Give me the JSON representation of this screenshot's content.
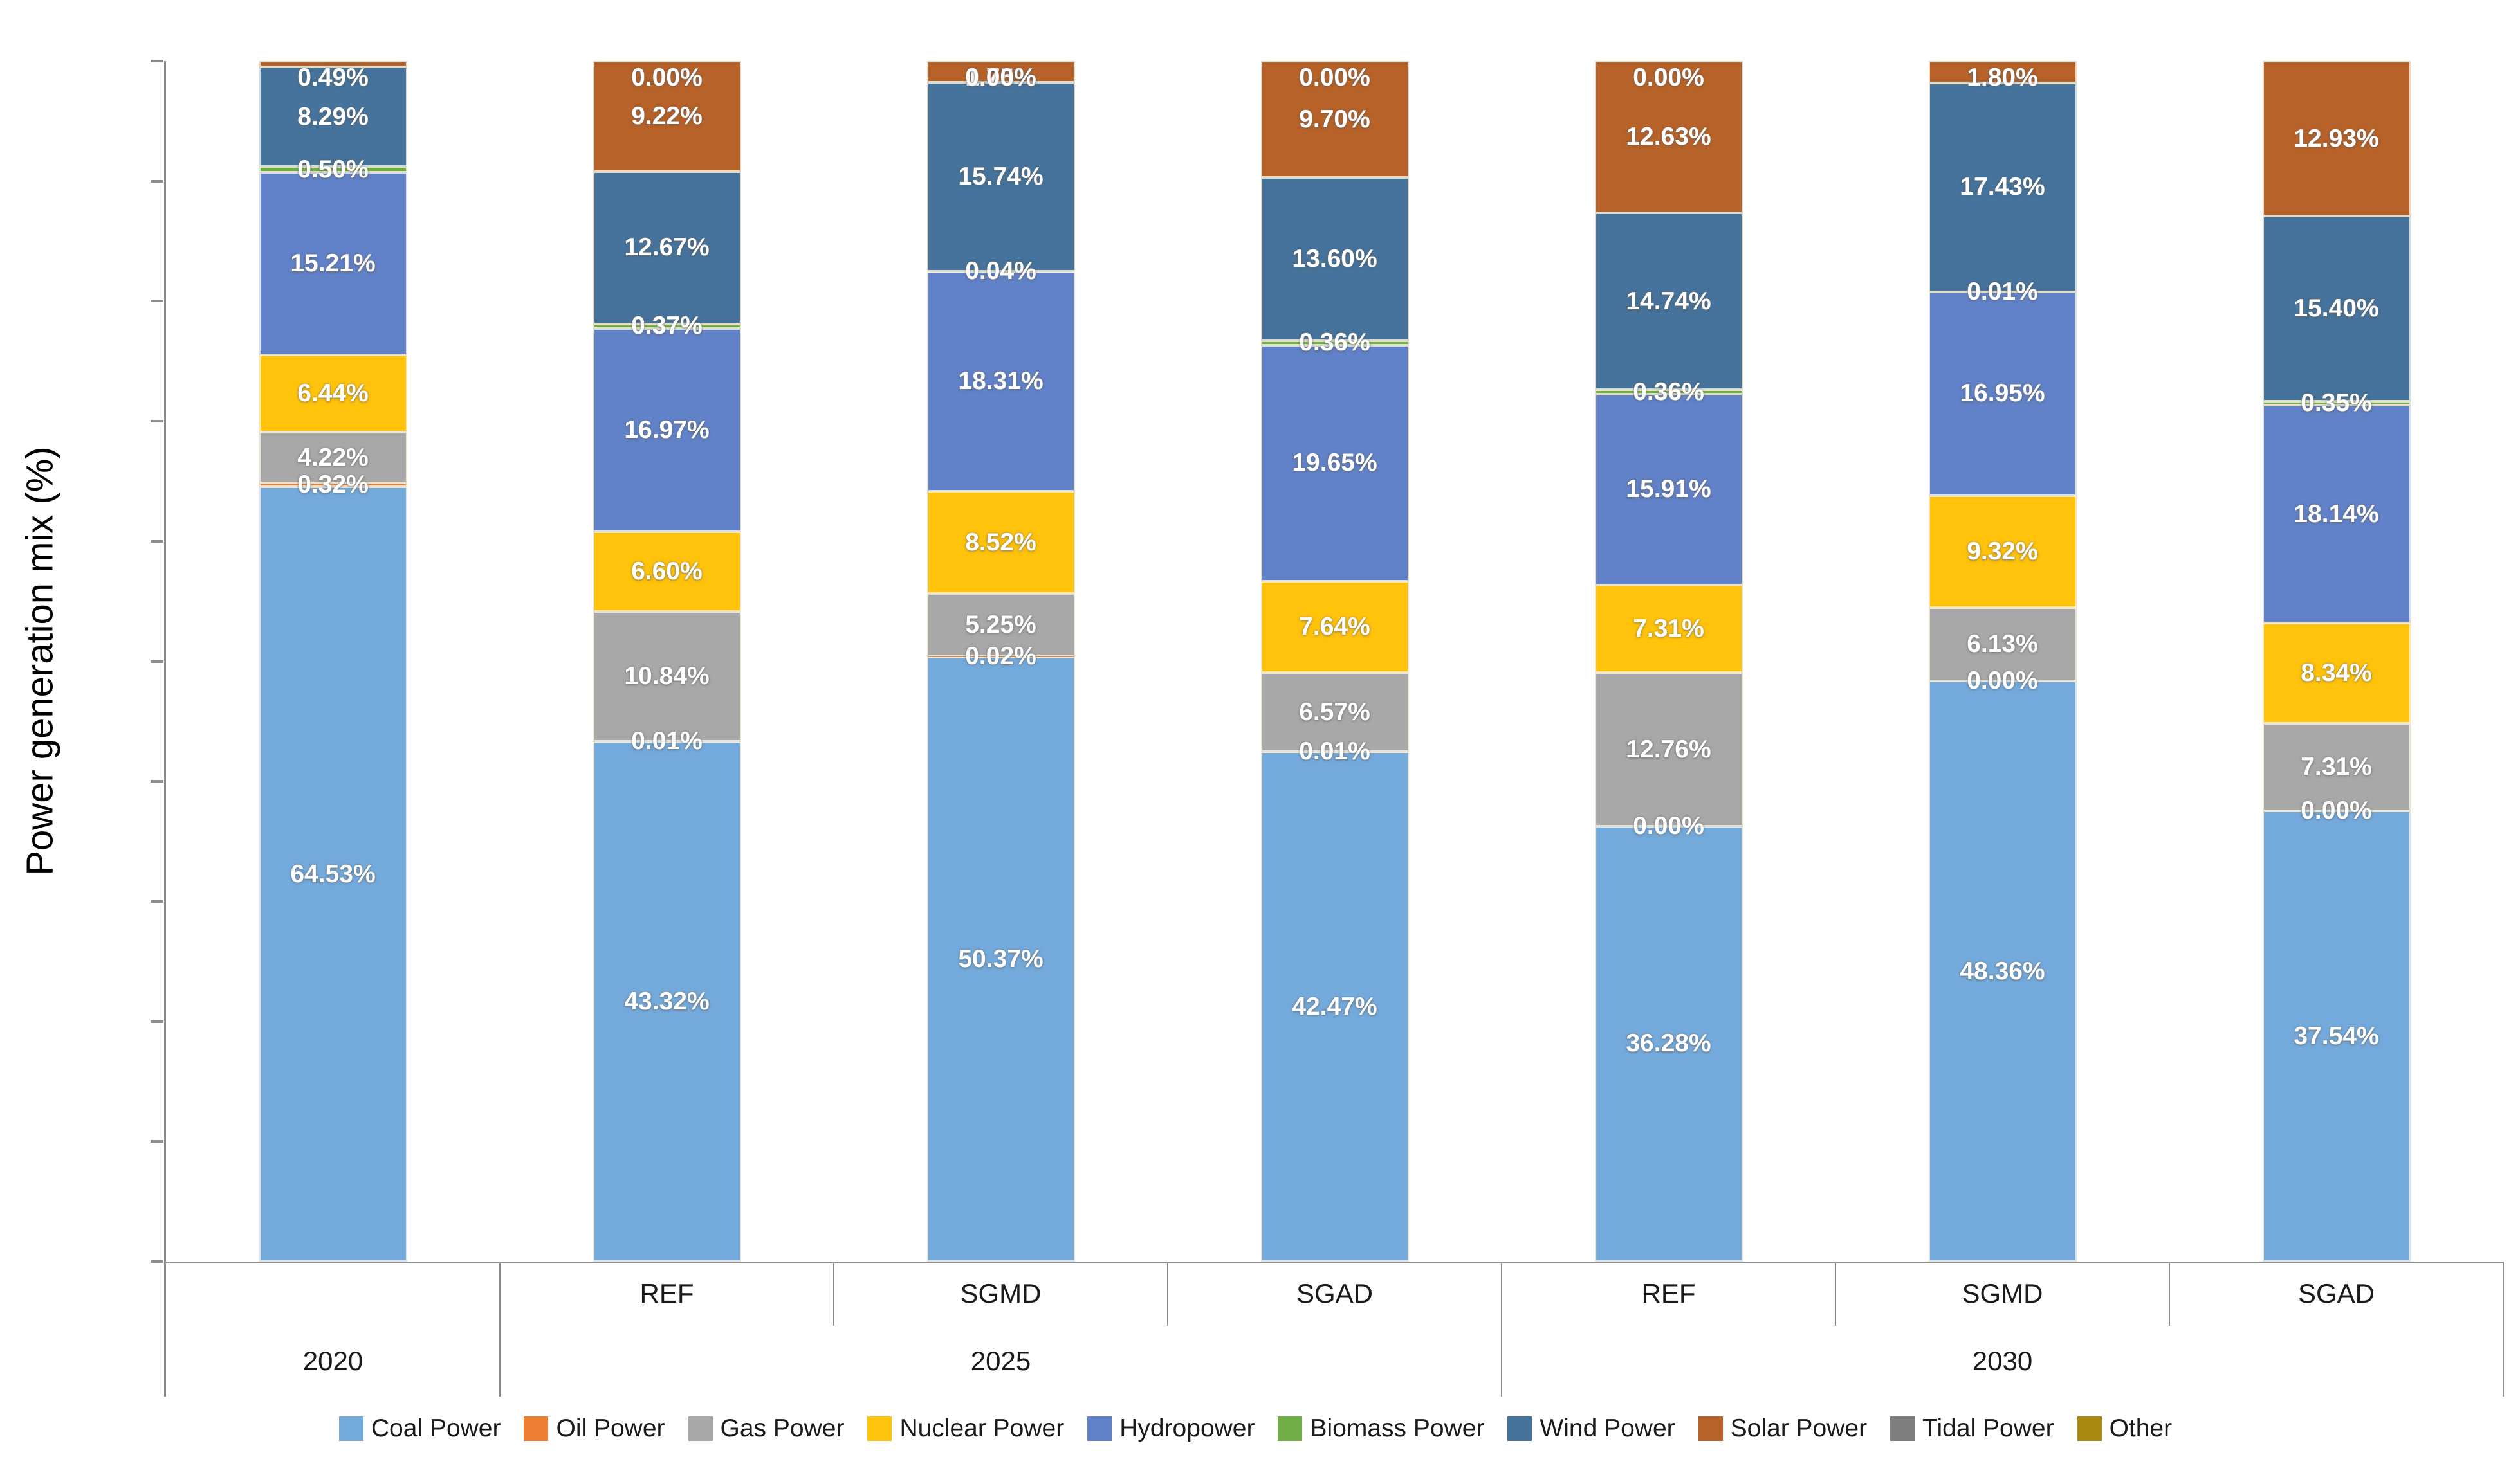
{
  "chart_data": {
    "type": "bar",
    "stacked": true,
    "ylabel": "Power generation mix (%)",
    "ylim": [
      0,
      100
    ],
    "y_tick_interval": 10,
    "grid": false,
    "legend_position": "bottom",
    "series": [
      {
        "name": "Coal Power",
        "color": "#74AADB"
      },
      {
        "name": "Oil Power",
        "color": "#ED7D31"
      },
      {
        "name": "Gas Power",
        "color": "#A8A8A8"
      },
      {
        "name": "Nuclear Power",
        "color": "#FFC30B"
      },
      {
        "name": "Hydropower",
        "color": "#6182C8"
      },
      {
        "name": "Biomass Power",
        "color": "#70AD47"
      },
      {
        "name": "Wind Power",
        "color": "#45739B"
      },
      {
        "name": "Solar Power",
        "color": "#B76228"
      },
      {
        "name": "Tidal Power",
        "color": "#7F7F7F"
      },
      {
        "name": "Other",
        "color": "#AA8A12"
      }
    ],
    "groups": [
      {
        "year": "2020",
        "scenarios": [
          ""
        ]
      },
      {
        "year": "2025",
        "scenarios": [
          "REF",
          "SGMD",
          "SGAD"
        ]
      },
      {
        "year": "2030",
        "scenarios": [
          "REF",
          "SGMD",
          "SGAD"
        ]
      }
    ],
    "bars": [
      {
        "year": "2020",
        "scenario": "",
        "values": {
          "Coal Power": 64.53,
          "Oil Power": 0.32,
          "Gas Power": 4.22,
          "Nuclear Power": 6.44,
          "Hydropower": 15.21,
          "Biomass Power": 0.5,
          "Wind Power": 8.29,
          "Solar Power": 0.49,
          "Tidal Power": 0,
          "Other": 0
        },
        "labels": {
          "Coal Power": "64.53%",
          "Oil Power": "0.32%",
          "Gas Power": "4.22%",
          "Nuclear Power": "6.44%",
          "Hydropower": "15.21%",
          "Biomass Power": "0.50%",
          "Wind Power": "8.29%",
          "Solar Power": "0.49%"
        }
      },
      {
        "year": "2025",
        "scenario": "REF",
        "values": {
          "Coal Power": 43.32,
          "Oil Power": 0.01,
          "Gas Power": 10.84,
          "Nuclear Power": 6.6,
          "Hydropower": 16.97,
          "Biomass Power": 0.37,
          "Wind Power": 12.67,
          "Solar Power": 9.22,
          "Tidal Power": 0,
          "Other": 0
        },
        "labels": {
          "Coal Power": "43.32%",
          "Oil Power": "0.01%",
          "Gas Power": "10.84%",
          "Nuclear Power": "6.60%",
          "Hydropower": "16.97%",
          "Biomass Power": "0.37%",
          "Wind Power": "12.67%",
          "Solar Power": "9.22%",
          "Tidal Power": "0.00%"
        }
      },
      {
        "year": "2025",
        "scenario": "SGMD",
        "values": {
          "Coal Power": 50.37,
          "Oil Power": 0.02,
          "Gas Power": 5.25,
          "Nuclear Power": 8.52,
          "Hydropower": 18.31,
          "Biomass Power": 0.04,
          "Wind Power": 15.74,
          "Solar Power": 1.75,
          "Tidal Power": 0,
          "Other": 0
        },
        "labels": {
          "Coal Power": "50.37%",
          "Oil Power": "0.02%",
          "Gas Power": "5.25%",
          "Nuclear Power": "8.52%",
          "Hydropower": "18.31%",
          "Biomass Power": "0.04%",
          "Wind Power": "15.74%",
          "Solar Power": "1.75%",
          "Tidal Power": "0.00%"
        }
      },
      {
        "year": "2025",
        "scenario": "SGAD",
        "values": {
          "Coal Power": 42.47,
          "Oil Power": 0.01,
          "Gas Power": 6.57,
          "Nuclear Power": 7.64,
          "Hydropower": 19.65,
          "Biomass Power": 0.36,
          "Wind Power": 13.6,
          "Solar Power": 9.7,
          "Tidal Power": 0,
          "Other": 0
        },
        "labels": {
          "Coal Power": "42.47%",
          "Oil Power": "0.01%",
          "Gas Power": "6.57%",
          "Nuclear Power": "7.64%",
          "Hydropower": "19.65%",
          "Biomass Power": "0.36%",
          "Wind Power": "13.60%",
          "Solar Power": "9.70%",
          "Tidal Power": "0.00%"
        }
      },
      {
        "year": "2030",
        "scenario": "REF",
        "values": {
          "Coal Power": 36.28,
          "Oil Power": 0.0,
          "Gas Power": 12.76,
          "Nuclear Power": 7.31,
          "Hydropower": 15.91,
          "Biomass Power": 0.36,
          "Wind Power": 14.74,
          "Solar Power": 12.63,
          "Tidal Power": 0,
          "Other": 0
        },
        "labels": {
          "Coal Power": "36.28%",
          "Oil Power": "0.00%",
          "Gas Power": "12.76%",
          "Nuclear Power": "7.31%",
          "Hydropower": "15.91%",
          "Biomass Power": "0.36%",
          "Wind Power": "14.74%",
          "Solar Power": "12.63%",
          "Tidal Power": "0.00%"
        }
      },
      {
        "year": "2030",
        "scenario": "SGMD",
        "values": {
          "Coal Power": 48.36,
          "Oil Power": 0.0,
          "Gas Power": 6.13,
          "Nuclear Power": 9.32,
          "Hydropower": 16.95,
          "Biomass Power": 0.01,
          "Wind Power": 17.43,
          "Solar Power": 1.8,
          "Tidal Power": 0,
          "Other": 0
        },
        "labels": {
          "Coal Power": "48.36%",
          "Oil Power": "0.00%",
          "Gas Power": "6.13%",
          "Nuclear Power": "9.32%",
          "Hydropower": "16.95%",
          "Biomass Power": "0.01%",
          "Wind Power": "17.43%",
          "Solar Power": "1.80%"
        }
      },
      {
        "year": "2030",
        "scenario": "SGAD",
        "values": {
          "Coal Power": 37.54,
          "Oil Power": 0.0,
          "Gas Power": 7.31,
          "Nuclear Power": 8.34,
          "Hydropower": 18.14,
          "Biomass Power": 0.35,
          "Wind Power": 15.4,
          "Solar Power": 12.93,
          "Tidal Power": 0,
          "Other": 0
        },
        "labels": {
          "Coal Power": "37.54%",
          "Oil Power": "0.00%",
          "Gas Power": "7.31%",
          "Nuclear Power": "8.34%",
          "Hydropower": "18.14%",
          "Biomass Power": "0.35%",
          "Wind Power": "15.40%",
          "Solar Power": "12.93%"
        }
      }
    ]
  }
}
